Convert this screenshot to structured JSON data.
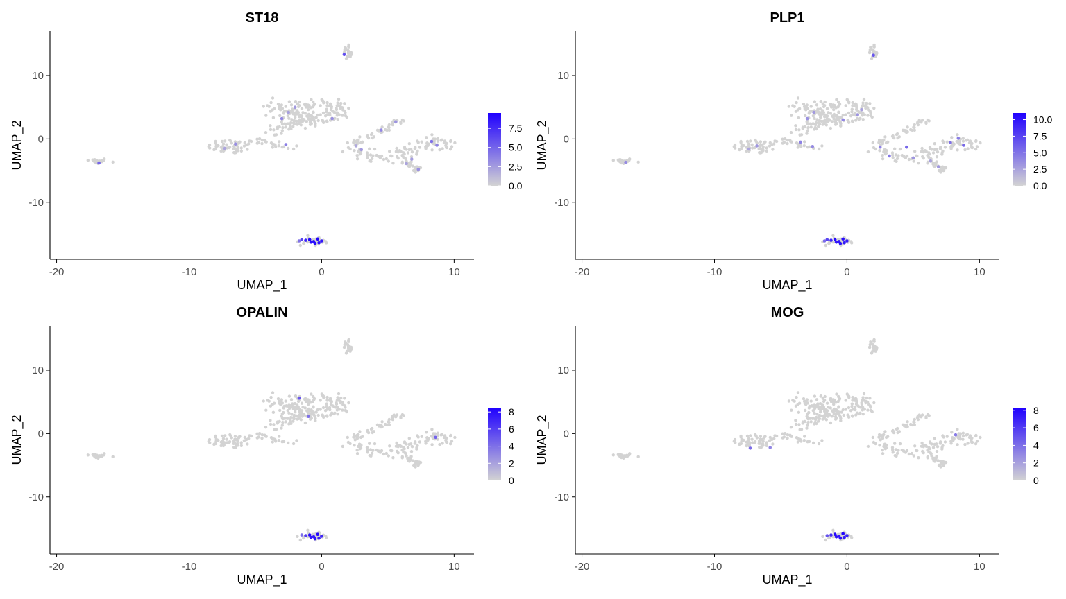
{
  "figure": {
    "background": "#ffffff",
    "low_color": "#d3d3d3",
    "high_color": "#1f00ff"
  },
  "chart_data": [
    {
      "type": "scatter",
      "title": "ST18",
      "xlabel": "UMAP_1",
      "ylabel": "UMAP_2",
      "xlim": [
        -20.5,
        11.5
      ],
      "ylim": [
        -19,
        17
      ],
      "xticks": [
        "-20",
        "-10",
        "0",
        "10"
      ],
      "xtick_values": [
        -20,
        -10,
        0,
        10
      ],
      "yticks": [
        "10",
        "0",
        "-10"
      ],
      "ytick_values": [
        10,
        0,
        -10
      ],
      "grid": false,
      "legend": {
        "position": "right",
        "max": 9.5,
        "labels": [
          "7.5",
          "5.0",
          "2.5",
          "0.0"
        ],
        "label_values": [
          7.5,
          5.0,
          2.5,
          0.0
        ]
      },
      "points_expressed": [
        [
          -0.9,
          -15.9,
          9.2
        ],
        [
          -0.6,
          -16.2,
          8.8
        ],
        [
          -0.3,
          -15.8,
          9.4
        ],
        [
          0.0,
          -16.1,
          8.5
        ],
        [
          -0.5,
          -16.5,
          9.0
        ],
        [
          -1.2,
          -16.0,
          7.9
        ],
        [
          -1.5,
          -15.9,
          6.5
        ],
        [
          -0.2,
          -16.4,
          8.7
        ],
        [
          -0.8,
          -16.3,
          8.9
        ],
        [
          -1.7,
          -16.1,
          4.4
        ],
        [
          -3.0,
          3.2,
          3.4
        ],
        [
          -2.0,
          5.0,
          2.6
        ],
        [
          0.8,
          3.2,
          3.0
        ],
        [
          -2.5,
          4.2,
          2.4
        ],
        [
          -6.5,
          -0.8,
          3.1
        ],
        [
          -2.7,
          -0.9,
          3.8
        ],
        [
          -7.3,
          -1.5,
          2.1
        ],
        [
          -16.8,
          -3.8,
          5.0
        ],
        [
          3.0,
          -1.7,
          2.6
        ],
        [
          2.6,
          -1.1,
          1.9
        ],
        [
          4.5,
          1.4,
          3.4
        ],
        [
          5.6,
          2.7,
          2.8
        ],
        [
          8.3,
          -0.4,
          4.4
        ],
        [
          8.7,
          -1.0,
          3.6
        ],
        [
          6.8,
          -3.2,
          2.4
        ],
        [
          7.3,
          -4.8,
          3.0
        ],
        [
          6.4,
          -3.9,
          2.1
        ],
        [
          1.7,
          13.3,
          6.0
        ]
      ],
      "cluster_summary": [
        {
          "name": "bottom",
          "center": [
            -0.7,
            -16.1
          ]
        },
        {
          "name": "top",
          "center": [
            1.9,
            13.6
          ]
        },
        {
          "name": "central",
          "center": [
            -1.2,
            3.4
          ]
        },
        {
          "name": "right",
          "center": [
            5.5,
            -1.5
          ]
        },
        {
          "name": "left-mid",
          "center": [
            -6.5,
            -1.2
          ]
        },
        {
          "name": "far-left",
          "center": [
            -17.0,
            -3.5
          ]
        }
      ]
    },
    {
      "type": "scatter",
      "title": "PLP1",
      "xlabel": "UMAP_1",
      "ylabel": "UMAP_2",
      "xlim": [
        -20.5,
        11.5
      ],
      "ylim": [
        -19,
        17
      ],
      "xticks": [
        "-20",
        "-10",
        "0",
        "10"
      ],
      "xtick_values": [
        -20,
        -10,
        0,
        10
      ],
      "yticks": [
        "10",
        "0",
        "-10"
      ],
      "ytick_values": [
        10,
        0,
        -10
      ],
      "grid": false,
      "legend": {
        "position": "right",
        "max": 11,
        "labels": [
          "10.0",
          "7.5",
          "5.0",
          "2.5",
          "0.0"
        ],
        "label_values": [
          10.0,
          7.5,
          5.0,
          2.5,
          0.0
        ]
      },
      "points_expressed": [
        [
          -0.9,
          -15.9,
          10.5
        ],
        [
          -0.6,
          -16.2,
          9.8
        ],
        [
          -0.3,
          -15.8,
          10.4
        ],
        [
          0.0,
          -16.1,
          9.5
        ],
        [
          -0.5,
          -16.5,
          10.0
        ],
        [
          -1.2,
          -16.0,
          8.9
        ],
        [
          -1.5,
          -15.9,
          7.5
        ],
        [
          -0.2,
          -16.4,
          9.7
        ],
        [
          -0.8,
          -16.3,
          9.9
        ],
        [
          -1.7,
          -16.1,
          5.4
        ],
        [
          -3.0,
          3.2,
          3.4
        ],
        [
          -2.5,
          4.2,
          3.0
        ],
        [
          -0.3,
          3.0,
          4.0
        ],
        [
          1.1,
          4.6,
          2.6
        ],
        [
          -3.5,
          -0.5,
          4.3
        ],
        [
          -2.6,
          -1.2,
          3.8
        ],
        [
          -6.8,
          -1.1,
          3.2
        ],
        [
          -7.4,
          -1.6,
          2.4
        ],
        [
          -16.7,
          -3.7,
          3.8
        ],
        [
          2.5,
          -1.3,
          4.2
        ],
        [
          3.2,
          -2.7,
          4.8
        ],
        [
          4.5,
          -1.3,
          5.6
        ],
        [
          5.0,
          -3.0,
          3.3
        ],
        [
          7.8,
          -0.6,
          5.1
        ],
        [
          8.4,
          0.1,
          4.5
        ],
        [
          8.8,
          -1.0,
          5.6
        ],
        [
          6.9,
          -4.4,
          3.1
        ],
        [
          6.3,
          -3.5,
          2.6
        ],
        [
          2.0,
          13.2,
          6.5
        ],
        [
          0.8,
          3.8,
          3.3
        ]
      ],
      "cluster_summary": [
        {
          "name": "bottom",
          "center": [
            -0.7,
            -16.1
          ]
        },
        {
          "name": "top",
          "center": [
            1.9,
            13.6
          ]
        },
        {
          "name": "central",
          "center": [
            -1.2,
            3.4
          ]
        },
        {
          "name": "right",
          "center": [
            5.5,
            -1.5
          ]
        },
        {
          "name": "left-mid",
          "center": [
            -6.5,
            -1.2
          ]
        },
        {
          "name": "far-left",
          "center": [
            -17.0,
            -3.5
          ]
        }
      ]
    },
    {
      "type": "scatter",
      "title": "OPALIN",
      "xlabel": "UMAP_1",
      "ylabel": "UMAP_2",
      "xlim": [
        -20.5,
        11.5
      ],
      "ylim": [
        -19,
        17
      ],
      "xticks": [
        "-20",
        "-10",
        "0",
        "10"
      ],
      "xtick_values": [
        -20,
        -10,
        0,
        10
      ],
      "yticks": [
        "10",
        "0",
        "-10"
      ],
      "ytick_values": [
        10,
        0,
        -10
      ],
      "grid": false,
      "legend": {
        "position": "right",
        "max": 8.5,
        "labels": [
          "8",
          "6",
          "4",
          "2",
          "0"
        ],
        "label_values": [
          8,
          6,
          4,
          2,
          0
        ]
      },
      "points_expressed": [
        [
          -0.9,
          -16.0,
          8.0
        ],
        [
          -0.6,
          -16.3,
          7.5
        ],
        [
          -0.3,
          -15.9,
          8.2
        ],
        [
          0.0,
          -16.2,
          7.0
        ],
        [
          -0.5,
          -16.6,
          7.8
        ],
        [
          -1.2,
          -16.1,
          6.0
        ],
        [
          -0.2,
          -16.5,
          7.3
        ],
        [
          -0.8,
          -16.4,
          7.6
        ],
        [
          -1.5,
          -16.0,
          4.0
        ],
        [
          -1.7,
          5.6,
          5.0
        ],
        [
          -1.0,
          2.7,
          4.0
        ],
        [
          8.6,
          -0.6,
          4.5
        ]
      ],
      "cluster_summary": [
        {
          "name": "bottom",
          "center": [
            -0.7,
            -16.1
          ]
        },
        {
          "name": "top",
          "center": [
            1.9,
            13.6
          ]
        },
        {
          "name": "central",
          "center": [
            -1.2,
            3.4
          ]
        },
        {
          "name": "right",
          "center": [
            5.5,
            -1.5
          ]
        },
        {
          "name": "left-mid",
          "center": [
            -6.5,
            -1.2
          ]
        },
        {
          "name": "far-left",
          "center": [
            -17.0,
            -3.5
          ]
        }
      ]
    },
    {
      "type": "scatter",
      "title": "MOG",
      "xlabel": "UMAP_1",
      "ylabel": "UMAP_2",
      "xlim": [
        -20.5,
        11.5
      ],
      "ylim": [
        -19,
        17
      ],
      "xticks": [
        "-20",
        "-10",
        "0",
        "10"
      ],
      "xtick_values": [
        -20,
        -10,
        0,
        10
      ],
      "yticks": [
        "10",
        "0",
        "-10"
      ],
      "ytick_values": [
        10,
        0,
        -10
      ],
      "grid": false,
      "legend": {
        "position": "right",
        "max": 8.3,
        "labels": [
          "8",
          "6",
          "4",
          "2",
          "0"
        ],
        "label_values": [
          8,
          6,
          4,
          2,
          0
        ]
      },
      "points_expressed": [
        [
          -0.9,
          -15.9,
          8.0
        ],
        [
          -0.6,
          -16.2,
          7.5
        ],
        [
          -0.3,
          -15.8,
          8.2
        ],
        [
          0.0,
          -16.1,
          7.0
        ],
        [
          -0.5,
          -16.5,
          7.8
        ],
        [
          -1.2,
          -16.0,
          6.5
        ],
        [
          -0.2,
          -16.4,
          7.3
        ],
        [
          -0.8,
          -16.3,
          7.6
        ],
        [
          -1.5,
          -16.1,
          5.0
        ],
        [
          -7.3,
          -2.3,
          4.0
        ],
        [
          -5.8,
          -2.2,
          3.0
        ],
        [
          8.2,
          -0.2,
          3.5
        ]
      ],
      "cluster_summary": [
        {
          "name": "bottom",
          "center": [
            -0.7,
            -16.1
          ]
        },
        {
          "name": "top",
          "center": [
            1.9,
            13.6
          ]
        },
        {
          "name": "central",
          "center": [
            -1.2,
            3.4
          ]
        },
        {
          "name": "right",
          "center": [
            5.5,
            -1.5
          ]
        },
        {
          "name": "left-mid",
          "center": [
            -6.5,
            -1.2
          ]
        },
        {
          "name": "far-left",
          "center": [
            -17.0,
            -3.5
          ]
        }
      ]
    }
  ]
}
